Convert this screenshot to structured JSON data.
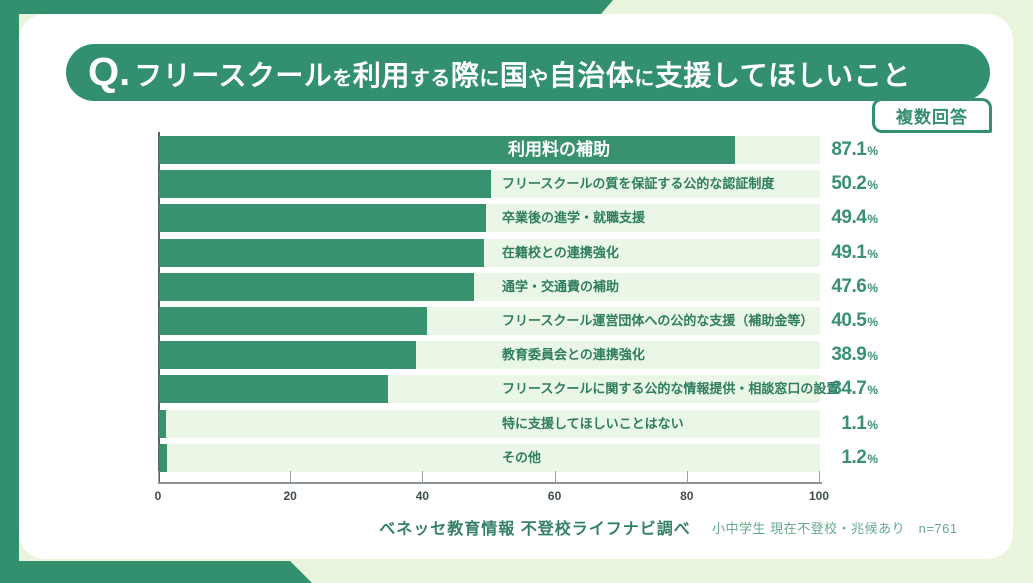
{
  "colors": {
    "page_bg": "#e9f4dd",
    "brand_green": "#33906e",
    "bar_green": "#38926f",
    "track_bg": "#eaf7e6",
    "label_text": "#2e7d5f",
    "value_text": "#3a9171",
    "badge_text": "#33906e"
  },
  "header": {
    "q_prefix": "Q.",
    "title_full": "フリースクールを利用する際に国や自治体に支援してほしいこと",
    "title_segments": [
      {
        "text": "フリースクール",
        "size": "lg"
      },
      {
        "text": "を",
        "size": "sm"
      },
      {
        "text": "利用",
        "size": "lg"
      },
      {
        "text": "する",
        "size": "sm"
      },
      {
        "text": "際",
        "size": "lg"
      },
      {
        "text": "に",
        "size": "sm"
      },
      {
        "text": "国",
        "size": "lg"
      },
      {
        "text": "や",
        "size": "sm"
      },
      {
        "text": "自治体",
        "size": "lg"
      },
      {
        "text": "に",
        "size": "sm"
      },
      {
        "text": "支援してほしいこと",
        "size": "lg"
      }
    ],
    "badge": "複数回答"
  },
  "chart_data": {
    "type": "bar",
    "orientation": "horizontal",
    "title": "フリースクールを利用する際に国や自治体に支援してほしいこと",
    "unit": "%",
    "categories": [
      "利用料の補助",
      "フリースクールの質を保証する公的な認証制度",
      "卒業後の進学・就職支援",
      "在籍校との連携強化",
      "通学・交通費の補助",
      "フリースクール運営団体への公的な支援（補助金等）",
      "教育委員会との連携強化",
      "フリースクールに関する公的な情報提供・相談窓口の設置",
      "特に支援してほしいことはない",
      "その他"
    ],
    "values": [
      87.1,
      50.2,
      49.4,
      49.1,
      47.6,
      40.5,
      38.9,
      34.7,
      1.1,
      1.2
    ],
    "x_ticks": [
      0,
      20,
      40,
      60,
      80,
      100
    ],
    "xlim": [
      0,
      100
    ],
    "grid": false,
    "legend": false,
    "value_labels_position": "right",
    "first_label_inside_bar": true
  },
  "footer": {
    "source": "ベネッセ教育情報 不登校ライフナビ調べ",
    "sample": "小中学生 現在不登校・兆候あり　n=761"
  }
}
